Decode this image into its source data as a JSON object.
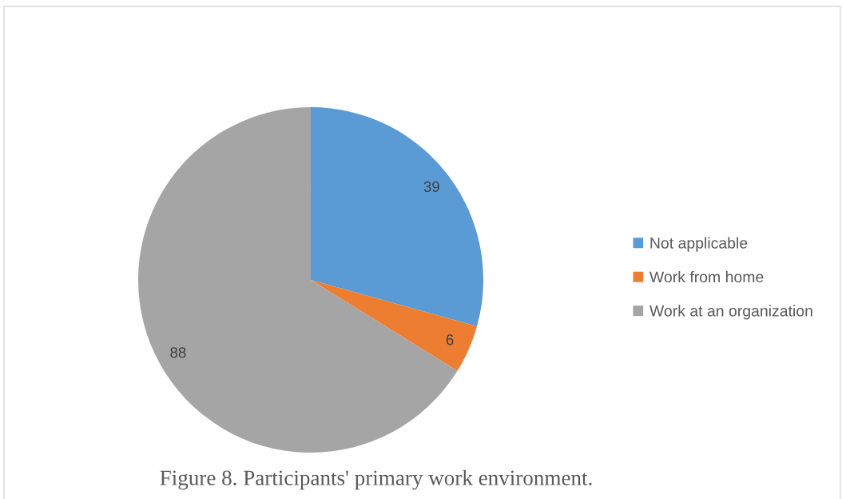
{
  "chart_data": {
    "type": "pie",
    "categories": [
      "Not applicable",
      "Work from home",
      "Work at an organization"
    ],
    "values": [
      39,
      6,
      88
    ],
    "colors": [
      "#5b9bd5",
      "#ed7d31",
      "#a5a5a5"
    ],
    "data_labels": true,
    "legend": "right",
    "annotations": [
      "Figure 8. Participants' primary work environment."
    ]
  }
}
